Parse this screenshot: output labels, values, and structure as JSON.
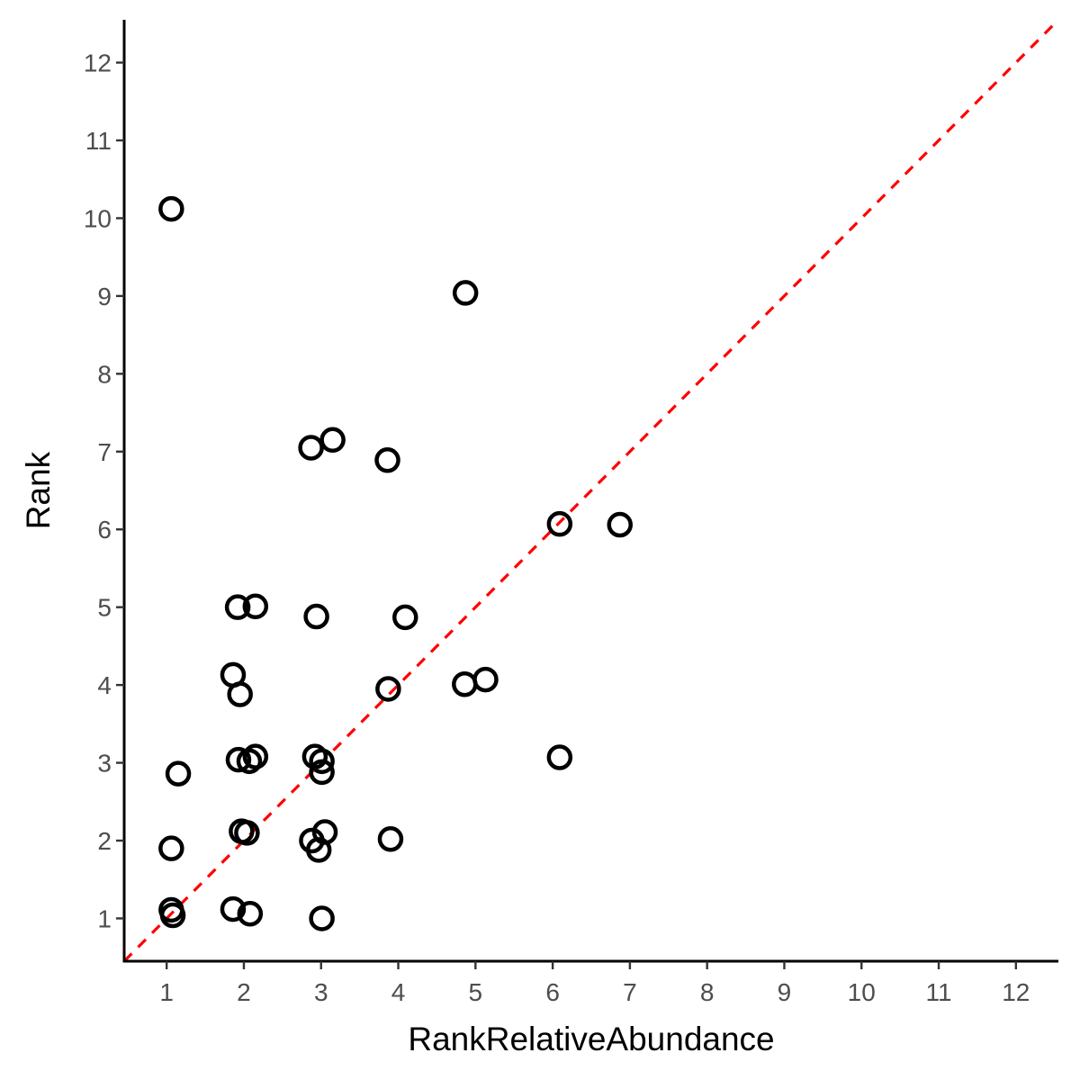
{
  "chart_data": {
    "type": "scatter",
    "xlabel": "RankRelativeAbundance",
    "ylabel": "Rank",
    "xlim": [
      0.45,
      12.55
    ],
    "ylim": [
      0.45,
      12.55
    ],
    "x_ticks": [
      1,
      2,
      3,
      4,
      5,
      6,
      7,
      8,
      9,
      10,
      11,
      12
    ],
    "y_ticks": [
      1,
      2,
      3,
      4,
      5,
      6,
      7,
      8,
      9,
      10,
      11,
      12
    ],
    "grid": false,
    "reference_line": {
      "slope": 1,
      "intercept": 0,
      "style": "dashed",
      "color": "#ff0000"
    },
    "points": [
      {
        "x": 1.06,
        "y": 10.12
      },
      {
        "x": 4.87,
        "y": 9.04
      },
      {
        "x": 2.87,
        "y": 7.05
      },
      {
        "x": 3.15,
        "y": 7.15
      },
      {
        "x": 3.86,
        "y": 6.89
      },
      {
        "x": 6.09,
        "y": 6.07
      },
      {
        "x": 6.87,
        "y": 6.06
      },
      {
        "x": 1.92,
        "y": 5.0
      },
      {
        "x": 2.15,
        "y": 5.01
      },
      {
        "x": 2.94,
        "y": 4.88
      },
      {
        "x": 4.09,
        "y": 4.87
      },
      {
        "x": 1.86,
        "y": 4.13
      },
      {
        "x": 1.95,
        "y": 3.88
      },
      {
        "x": 3.87,
        "y": 3.95
      },
      {
        "x": 4.86,
        "y": 4.01
      },
      {
        "x": 5.13,
        "y": 4.07
      },
      {
        "x": 1.93,
        "y": 3.04
      },
      {
        "x": 2.07,
        "y": 3.02
      },
      {
        "x": 2.15,
        "y": 3.08
      },
      {
        "x": 2.92,
        "y": 3.08
      },
      {
        "x": 3.01,
        "y": 3.02
      },
      {
        "x": 3.01,
        "y": 2.88
      },
      {
        "x": 1.15,
        "y": 2.86
      },
      {
        "x": 6.09,
        "y": 3.07
      },
      {
        "x": 1.97,
        "y": 2.12
      },
      {
        "x": 2.04,
        "y": 2.1
      },
      {
        "x": 3.05,
        "y": 2.11
      },
      {
        "x": 2.88,
        "y": 2.0
      },
      {
        "x": 2.97,
        "y": 1.88
      },
      {
        "x": 3.9,
        "y": 2.02
      },
      {
        "x": 1.06,
        "y": 1.9
      },
      {
        "x": 1.06,
        "y": 1.11
      },
      {
        "x": 1.08,
        "y": 1.04
      },
      {
        "x": 1.86,
        "y": 1.12
      },
      {
        "x": 2.08,
        "y": 1.06
      },
      {
        "x": 3.01,
        "y": 1.0
      }
    ]
  }
}
